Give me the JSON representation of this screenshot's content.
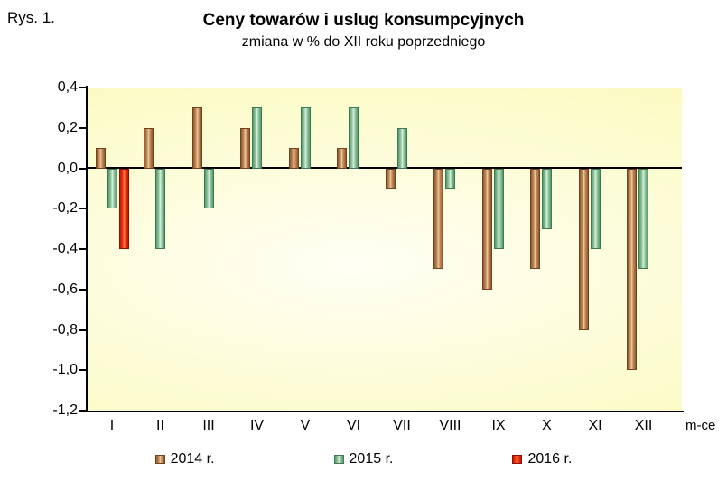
{
  "figure_label": "Rys. 1.",
  "title": "Ceny towarów i uslug konsumpcyjnych",
  "subtitle": "zmiana w % do XII roku poprzedniego",
  "x_axis_unit": "m-ce",
  "chart_data": {
    "type": "bar",
    "title": "Ceny towarów i uslug konsumpcyjnych",
    "subtitle": "zmiana w % do XII roku poprzedniego",
    "categories": [
      "I",
      "II",
      "III",
      "IV",
      "V",
      "VI",
      "VII",
      "VIII",
      "IX",
      "X",
      "XI",
      "XII"
    ],
    "series": [
      {
        "name": "2014 r.",
        "values": [
          0.1,
          0.2,
          0.3,
          0.2,
          0.1,
          0.1,
          -0.1,
          -0.5,
          -0.6,
          -0.5,
          -0.8,
          -1.0
        ],
        "color_dark": "#8F5A2F",
        "color_mid": "#C98F5E",
        "color_light": "#EDD0A8",
        "color_border": "#6E431F"
      },
      {
        "name": "2015 r.",
        "values": [
          -0.2,
          -0.4,
          -0.2,
          0.3,
          0.3,
          0.3,
          0.2,
          -0.1,
          -0.4,
          -0.3,
          -0.4,
          -0.5
        ],
        "color_dark": "#55996F",
        "color_mid": "#9CCCA9",
        "color_light": "#DFF2E0",
        "color_border": "#3C7A53"
      },
      {
        "name": "2016 r.",
        "values": [
          -0.4,
          null,
          null,
          null,
          null,
          null,
          null,
          null,
          null,
          null,
          null,
          null
        ],
        "color_dark": "#C21807",
        "color_mid": "#F33B14",
        "color_light": "#FF8A4D",
        "color_border": "#8F0E00"
      }
    ],
    "ylim": [
      -1.2,
      0.4
    ],
    "ytick_step": 0.2,
    "ytick_labels": [
      "0,4",
      "0,2",
      "0,0",
      "-0,2",
      "-0,4",
      "-0,6",
      "-0,8",
      "-1,0",
      "-1,2"
    ],
    "xlabel": "m-ce",
    "ylabel": "",
    "grid": false,
    "legend_position": "bottom",
    "plot_background": "#FBFAC0"
  }
}
